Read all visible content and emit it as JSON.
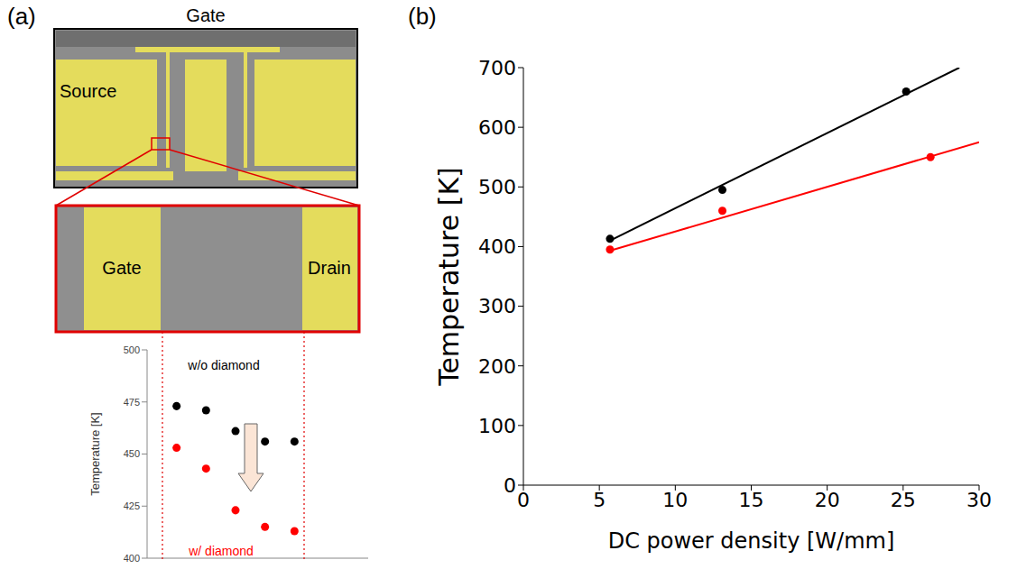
{
  "panel_labels": [
    "(a)",
    "(b)"
  ],
  "diagram": {
    "labels": {
      "gate": "Gate",
      "source": "Source"
    },
    "zoom_labels": {
      "gate": "Gate",
      "drain": "Drain"
    }
  },
  "chart_data": [
    {
      "type": "scatter",
      "y_label": "Temperature [K]",
      "xlim": [
        0,
        7.5
      ],
      "ylim": [
        400,
        500
      ],
      "yticks": [
        400,
        425,
        450,
        475,
        500
      ],
      "tick_labels": "y",
      "series": [
        {
          "name": "w/o diamond",
          "color": "#000000",
          "marker": "circle",
          "x": [
            1,
            2,
            3,
            4,
            5
          ],
          "values": [
            473,
            471,
            461,
            456,
            456
          ]
        },
        {
          "name": "w/ diamond",
          "color": "#ff0000",
          "marker": "circle",
          "x": [
            1,
            2,
            3,
            4,
            5
          ],
          "values": [
            453,
            443,
            423,
            415,
            413
          ]
        }
      ]
    },
    {
      "type": "scatter",
      "x_label": "DC power density [W/mm]",
      "y_label": "Temperature [K]",
      "xlim": [
        0,
        30
      ],
      "xticks": [
        0,
        5,
        10,
        15,
        20,
        25,
        30
      ],
      "ylim": [
        0,
        700
      ],
      "yticks": [
        0,
        100,
        200,
        300,
        400,
        500,
        600,
        700
      ],
      "series": [
        {
          "color": "#000000",
          "marker": "circle",
          "x": [
            5.7,
            13.1,
            25.2
          ],
          "values": [
            413,
            495,
            660
          ]
        },
        {
          "color": "#ff0000",
          "marker": "circle",
          "x": [
            5.7,
            13.1,
            26.8
          ],
          "values": [
            395,
            460,
            550
          ]
        },
        {
          "type": "line",
          "color": "#000000",
          "x": [
            5.7,
            28.7
          ],
          "values": [
            410,
            700
          ]
        },
        {
          "type": "line",
          "color": "#ff0000",
          "x": [
            5.7,
            30
          ],
          "values": [
            393,
            575
          ]
        }
      ]
    }
  ]
}
